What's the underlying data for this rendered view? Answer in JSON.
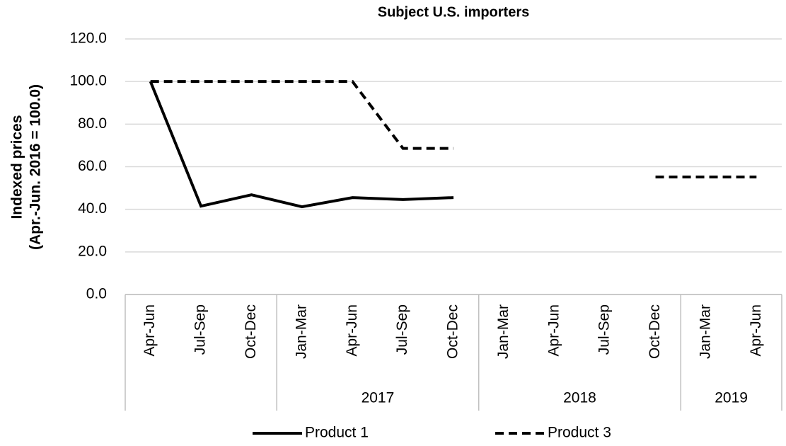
{
  "chart_data": {
    "type": "line",
    "title": "Subject U.S. importers",
    "y_label": [
      "Indexed prices",
      "(Apr.-Jun. 2016 = 100.0)"
    ],
    "categories": [
      "Apr-Jun",
      "Jul-Sep",
      "Oct-Dec",
      "Jan-Mar",
      "Apr-Jun",
      "Jul-Sep",
      "Oct-Dec",
      "Jan-Mar",
      "Apr-Jun",
      "Jul-Sep",
      "Oct-Dec",
      "Jan-Mar",
      "Apr-Jun"
    ],
    "group_labels": [
      null,
      "2017",
      "2018",
      "2019"
    ],
    "group_sizes": [
      3,
      4,
      4,
      2
    ],
    "series": [
      {
        "name": "Product 1",
        "color": "#000000",
        "dash": "solid",
        "values": [
          100.0,
          41.5,
          46.8,
          41.2,
          45.5,
          44.6,
          45.5,
          null,
          null,
          null,
          null,
          null,
          null
        ]
      },
      {
        "name": "Product 3",
        "color": "#000000",
        "dash": "dashed",
        "values": [
          100.0,
          100.0,
          100.0,
          100.0,
          100.0,
          68.6,
          68.6,
          null,
          null,
          null,
          55.2,
          55.2,
          55.2
        ]
      }
    ],
    "ylim": [
      0,
      120
    ],
    "yticks": [
      {
        "value": 0,
        "label": "0.0"
      },
      {
        "value": 20,
        "label": "20.0"
      },
      {
        "value": 40,
        "label": "40.0"
      },
      {
        "value": 60,
        "label": "60.0"
      },
      {
        "value": 80,
        "label": "80.0"
      },
      {
        "value": 100,
        "label": "100.0"
      },
      {
        "value": 120,
        "label": "120.0"
      }
    ],
    "grid": true,
    "legend": "bottom"
  }
}
